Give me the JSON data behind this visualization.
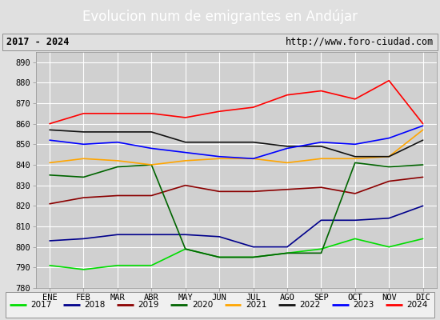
{
  "title": "Evolucion num de emigrantes en Andújar",
  "title_bg": "#4472c4",
  "subtitle_left": "2017 - 2024",
  "subtitle_right": "http://www.foro-ciudad.com",
  "ylim": [
    780,
    895
  ],
  "yticks": [
    780,
    790,
    800,
    810,
    820,
    830,
    840,
    850,
    860,
    870,
    880,
    890
  ],
  "months": [
    "ENE",
    "FEB",
    "MAR",
    "ABR",
    "MAY",
    "JUN",
    "JUL",
    "AGO",
    "SEP",
    "OCT",
    "NOV",
    "DIC"
  ],
  "series": {
    "2017": {
      "color": "#00dd00",
      "data": [
        791,
        789,
        791,
        791,
        799,
        795,
        795,
        797,
        799,
        804,
        800,
        804
      ]
    },
    "2018": {
      "color": "#00008b",
      "data": [
        803,
        804,
        806,
        806,
        806,
        805,
        800,
        800,
        813,
        813,
        814,
        820
      ]
    },
    "2019": {
      "color": "#8b0000",
      "data": [
        821,
        824,
        825,
        825,
        830,
        827,
        827,
        828,
        829,
        826,
        832,
        834
      ]
    },
    "2020": {
      "color": "#006400",
      "data": [
        835,
        834,
        839,
        840,
        799,
        795,
        795,
        797,
        797,
        841,
        839,
        840
      ]
    },
    "2021": {
      "color": "#ffa500",
      "data": [
        841,
        843,
        842,
        840,
        842,
        843,
        843,
        841,
        843,
        843,
        844,
        857
      ]
    },
    "2022": {
      "color": "#111111",
      "data": [
        857,
        856,
        856,
        856,
        851,
        851,
        851,
        849,
        849,
        844,
        844,
        852
      ]
    },
    "2023": {
      "color": "#0000ff",
      "data": [
        852,
        850,
        851,
        848,
        846,
        844,
        843,
        848,
        851,
        850,
        853,
        859
      ]
    },
    "2024": {
      "color": "#ff0000",
      "data": [
        860,
        865,
        865,
        865,
        863,
        866,
        868,
        874,
        876,
        872,
        881,
        860
      ]
    }
  },
  "chart_bg": "#e0e0e0",
  "plot_bg": "#d0d0d0",
  "grid_color": "#ffffff",
  "legend_bg": "#f0f0f0"
}
